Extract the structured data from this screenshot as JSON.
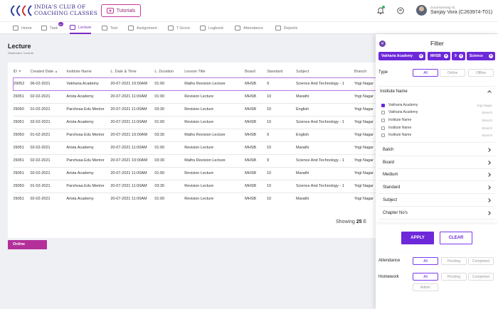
{
  "brand": {
    "line1": "INDIA'S CLUB OF",
    "line2": "COACHING CLASSES"
  },
  "header": {
    "tutorials_label": "Tutorials",
    "greeting": "Good Morning To,",
    "username": "Sanjay Vora (C263974-T01)"
  },
  "nav": {
    "items": [
      {
        "label": "Home"
      },
      {
        "label": "Task",
        "badge": "9+"
      },
      {
        "label": "Lecture"
      },
      {
        "label": "Test"
      },
      {
        "label": "Assignment"
      },
      {
        "label": "T-Score"
      },
      {
        "label": "Logbook"
      },
      {
        "label": "Attendance"
      },
      {
        "label": "Reports"
      }
    ]
  },
  "page": {
    "title": "Lecture",
    "breadcrumb": "Dashboard / Lecture"
  },
  "table": {
    "headers": [
      "ID",
      "Created Date",
      "Institute Name",
      "L. Date & Time",
      "L. Duration",
      "Lesson Title",
      "Board",
      "Standard",
      "Subject",
      "Branch"
    ],
    "rows": [
      [
        "29052",
        "06-02-2021",
        "Vakharia Academy",
        "20-07-2021 10:00AM",
        "01:00",
        "Maths Revision Lecture",
        "MHSB",
        "9",
        "Science And Technology - 1",
        "Yogi Nagar"
      ],
      [
        "29051",
        "02-02-2021",
        "Arista Academy",
        "20-07-2021 11:00AM",
        "01:00",
        "Revision Lecture",
        "MHSB",
        "10",
        "Marathi",
        "Yogi Nagar"
      ],
      [
        "29050",
        "01-02-2021",
        "Parshvaa Edu Mentor",
        "20-07-2021 11:00AM",
        "03:30",
        "Revision Lecture",
        "MHSB",
        "10",
        "English",
        "Yogi Nagar"
      ],
      [
        "29051",
        "02-02-2021",
        "Arista Academy",
        "20-07-2021 11:00AM",
        "01:00",
        "Revision Lecture",
        "MHSB",
        "10",
        "Science And Technology - 1",
        "Yogi Nagar"
      ],
      [
        "29050",
        "01-02-2021",
        "Parshvaa Edu Mentor",
        "20-07-2021 10:00AM",
        "03:30",
        "Maths Revision Lecture",
        "MHSB",
        "9",
        "English",
        "Yogi Nagar"
      ],
      [
        "29051",
        "02-02-2021",
        "Arista Academy",
        "20-07-2021 11:00AM",
        "01:00",
        "Revision Lecture",
        "MHSB",
        "10",
        "Marathi",
        "Yogi Nagar"
      ],
      [
        "29051",
        "02-02-2021",
        "Parshvaa Edu Mentor",
        "20-07-2021 10:00AM",
        "03:30",
        "Maths Revision Lecture",
        "MHSB",
        "9",
        "Science And Technology - 1",
        "Yogi Nagar"
      ],
      [
        "29051",
        "02-02-2021",
        "Arista Academy",
        "20-07-2021 11:00AM",
        "01:00",
        "Revision Lecture",
        "MHSB",
        "10",
        "Marathi",
        "Yogi Nagar"
      ],
      [
        "29050",
        "01-02-2021",
        "Parshvaa Edu Mentor",
        "20-07-2021 11:00AM",
        "03:30",
        "Revision Lecture",
        "MHSB",
        "10",
        "Science And Technology - 1",
        "Yogi Nagar"
      ],
      [
        "29051",
        "02-02-2021",
        "Arista Academy",
        "20-07-2021 11:00AM",
        "01:00",
        "Revision Lecture",
        "MHSB",
        "10",
        "Marathi",
        "Yogi Nagar"
      ]
    ]
  },
  "footer": {
    "showing_prefix": "Showing",
    "showing_count": "25",
    "showing_suffix": "E",
    "online_label": "Online"
  },
  "filter": {
    "title": "Filter",
    "chips": [
      "Vakharia Academy",
      "MHSB",
      "9",
      "Science"
    ],
    "type_label": "Type",
    "type_options": [
      "All",
      "Online",
      "Offline"
    ],
    "institute_label": "Institute Name",
    "institutes": [
      {
        "name": "Vakharia Academy",
        "side": "Yogi Nagar",
        "checked": true
      },
      {
        "name": "Vakharia Academy",
        "side": "Branch",
        "checked": false
      },
      {
        "name": "Institute Name",
        "side": "Branch",
        "checked": false
      },
      {
        "name": "Institute Name",
        "side": "Branch",
        "checked": false
      },
      {
        "name": "Institute Name",
        "side": "Branch",
        "checked": false
      }
    ],
    "sections": [
      "Batch",
      "Board",
      "Medium",
      "Standard",
      "Subject",
      "Chapter No's"
    ],
    "apply_label": "APPLY",
    "clear_label": "CLEAR",
    "attendance_label": "Attendance",
    "attendance_options": [
      "All",
      "Pending",
      "Completed"
    ],
    "homework_label": "Homework",
    "homework_options": [
      "All",
      "Pending",
      "Completed",
      "Admin"
    ]
  }
}
